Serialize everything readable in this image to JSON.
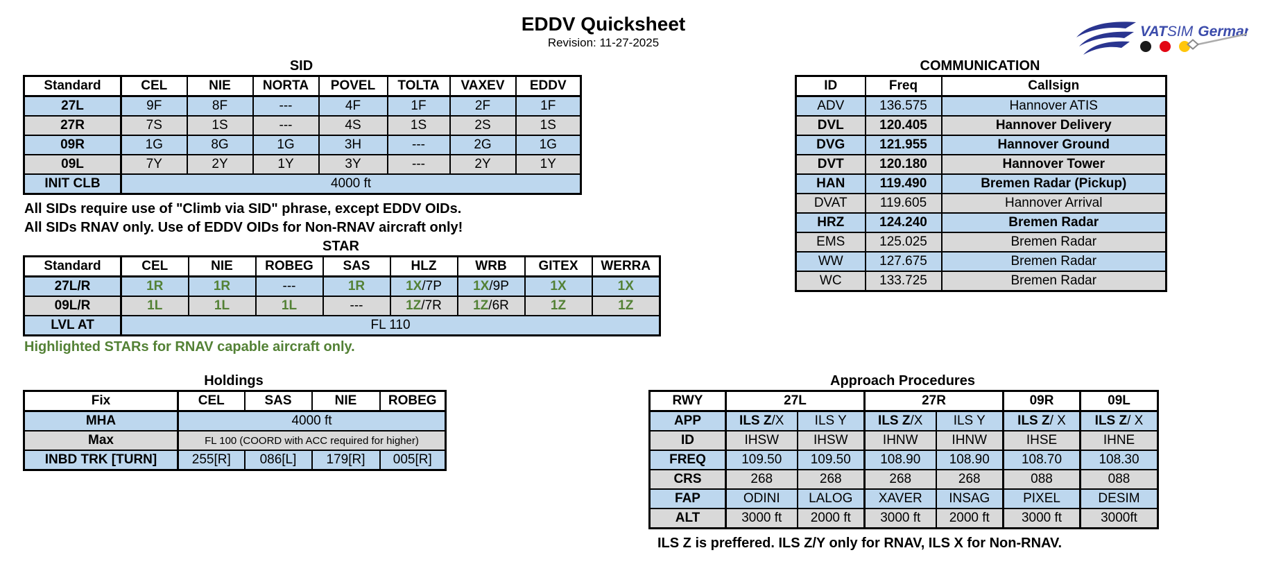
{
  "header": {
    "title": "EDDV Quicksheet",
    "revision": "Revision: 11-27-2025"
  },
  "logo": {
    "part1": "VAT",
    "part2": "SIM",
    "part3": "Germany",
    "colors": {
      "swoosh_blue": "#2A3590",
      "text_blue": "#3C4CAB",
      "dot_black": "#1A1A1A",
      "dot_red": "#E30613",
      "dot_yellow": "#FFC60B",
      "needle_gray": "#ABABAB"
    }
  },
  "colors": {
    "row_blue": "#BDD7EE",
    "row_gray": "#D9D9D9",
    "green_text": "#538135"
  },
  "sid": {
    "title": "SID",
    "notes": [
      "All SIDs require use of \"Climb via SID\" phrase, except EDDV OIDs.",
      "All SIDs RNAV only. Use of EDDV OIDs for Non-RNAV aircraft only!"
    ],
    "table": {
      "rows": [
        {
          "shade": "header",
          "cells": [
            {
              "t": "Standard",
              "b": 1
            },
            {
              "t": "CEL",
              "b": 1
            },
            {
              "t": "NIE",
              "b": 1
            },
            {
              "t": "NORTA",
              "b": 1
            },
            {
              "t": "POVEL",
              "b": 1
            },
            {
              "t": "TOLTA",
              "b": 1
            },
            {
              "t": "VAXEV",
              "b": 1
            },
            {
              "t": "EDDV",
              "b": 1
            }
          ]
        },
        {
          "shade": "blue",
          "cells": [
            {
              "t": "27L",
              "b": 1
            },
            {
              "t": "9F"
            },
            {
              "t": "8F"
            },
            {
              "t": "---"
            },
            {
              "t": "4F"
            },
            {
              "t": "1F"
            },
            {
              "t": "2F"
            },
            {
              "t": "1F"
            }
          ]
        },
        {
          "shade": "gray",
          "cells": [
            {
              "t": "27R",
              "b": 1
            },
            {
              "t": "7S"
            },
            {
              "t": "1S"
            },
            {
              "t": "---"
            },
            {
              "t": "4S"
            },
            {
              "t": "1S"
            },
            {
              "t": "2S"
            },
            {
              "t": "1S"
            }
          ]
        },
        {
          "shade": "blue",
          "cells": [
            {
              "t": "09R",
              "b": 1
            },
            {
              "t": "1G"
            },
            {
              "t": "8G"
            },
            {
              "t": "1G"
            },
            {
              "t": "3H"
            },
            {
              "t": "---"
            },
            {
              "t": "2G"
            },
            {
              "t": "1G"
            }
          ]
        },
        {
          "shade": "gray",
          "cells": [
            {
              "t": "09L",
              "b": 1
            },
            {
              "t": "7Y"
            },
            {
              "t": "2Y"
            },
            {
              "t": "1Y"
            },
            {
              "t": "3Y"
            },
            {
              "t": "---"
            },
            {
              "t": "2Y"
            },
            {
              "t": "1Y"
            }
          ]
        },
        {
          "shade": "blue",
          "cells": [
            {
              "t": "INIT CLB",
              "b": 1
            },
            {
              "t": "4000 ft",
              "span": 7
            }
          ]
        }
      ]
    }
  },
  "star": {
    "title": "STAR",
    "note": "Highlighted STARs for RNAV capable aircraft only.",
    "table": {
      "rows": [
        {
          "shade": "header",
          "cells": [
            {
              "t": "Standard",
              "b": 1
            },
            {
              "t": "CEL",
              "b": 1
            },
            {
              "t": "NIE",
              "b": 1
            },
            {
              "t": "ROBEG",
              "b": 1
            },
            {
              "t": "SAS",
              "b": 1
            },
            {
              "t": "HLZ",
              "b": 1
            },
            {
              "t": "WRB",
              "b": 1
            },
            {
              "t": "GITEX",
              "b": 1
            },
            {
              "t": "WERRA",
              "b": 1
            }
          ]
        },
        {
          "shade": "blue",
          "cells": [
            {
              "t": "27L/R",
              "b": 1
            },
            {
              "t": "1R",
              "g": 1
            },
            {
              "t": "1R",
              "g": 1
            },
            {
              "t": "---"
            },
            {
              "t": "1R",
              "g": 1
            },
            {
              "parts": [
                {
                  "t": "1X",
                  "g": 1
                },
                {
                  "t": "/7P"
                }
              ]
            },
            {
              "parts": [
                {
                  "t": "1X",
                  "g": 1
                },
                {
                  "t": "/9P"
                }
              ]
            },
            {
              "t": "1X",
              "g": 1
            },
            {
              "t": "1X",
              "g": 1
            }
          ]
        },
        {
          "shade": "gray",
          "cells": [
            {
              "t": "09L/R",
              "b": 1
            },
            {
              "t": "1L",
              "g": 1
            },
            {
              "t": "1L",
              "g": 1
            },
            {
              "t": "1L",
              "g": 1
            },
            {
              "t": "---"
            },
            {
              "parts": [
                {
                  "t": "1Z",
                  "g": 1
                },
                {
                  "t": "/7R"
                }
              ]
            },
            {
              "parts": [
                {
                  "t": "1Z",
                  "g": 1
                },
                {
                  "t": "/6R"
                }
              ]
            },
            {
              "t": "1Z",
              "g": 1
            },
            {
              "t": "1Z",
              "g": 1
            }
          ]
        },
        {
          "shade": "blue",
          "cells": [
            {
              "t": "LVL AT",
              "b": 1
            },
            {
              "t": "FL 110",
              "span": 8
            }
          ]
        }
      ]
    }
  },
  "holdings": {
    "title": "Holdings",
    "table": {
      "rows": [
        {
          "shade": "header",
          "cells": [
            {
              "t": "Fix",
              "b": 1
            },
            {
              "t": "CEL",
              "b": 1
            },
            {
              "t": "SAS",
              "b": 1
            },
            {
              "t": "NIE",
              "b": 1
            },
            {
              "t": "ROBEG",
              "b": 1
            }
          ]
        },
        {
          "shade": "blue",
          "cells": [
            {
              "t": "MHA",
              "b": 1
            },
            {
              "t": "4000 ft",
              "span": 4
            }
          ]
        },
        {
          "shade": "gray",
          "cells": [
            {
              "t": "Max",
              "b": 1
            },
            {
              "t": "FL 100 (COORD with ACC required for higher)",
              "span": 4,
              "small": 1
            }
          ]
        },
        {
          "shade": "blue",
          "cells": [
            {
              "t": "INBD TRK [TURN]",
              "b": 1
            },
            {
              "t": "255[R]"
            },
            {
              "t": "086[L]"
            },
            {
              "t": "179[R]"
            },
            {
              "t": "005[R]"
            }
          ]
        }
      ]
    }
  },
  "comm": {
    "title": "COMMUNICATION",
    "table": {
      "rows": [
        {
          "shade": "header",
          "cells": [
            {
              "t": "ID",
              "b": 1
            },
            {
              "t": "Freq",
              "b": 1
            },
            {
              "t": "Callsign",
              "b": 1
            }
          ]
        },
        {
          "shade": "blue",
          "cells": [
            {
              "t": "ADV"
            },
            {
              "t": "136.575"
            },
            {
              "t": "Hannover ATIS"
            }
          ]
        },
        {
          "shade": "gray",
          "cells": [
            {
              "t": "DVL",
              "b": 1
            },
            {
              "t": "120.405",
              "b": 1
            },
            {
              "t": "Hannover Delivery",
              "b": 1
            }
          ]
        },
        {
          "shade": "blue",
          "cells": [
            {
              "t": "DVG",
              "b": 1
            },
            {
              "t": "121.955",
              "b": 1
            },
            {
              "t": "Hannover Ground",
              "b": 1
            }
          ]
        },
        {
          "shade": "gray",
          "cells": [
            {
              "t": "DVT",
              "b": 1
            },
            {
              "t": "120.180",
              "b": 1
            },
            {
              "t": "Hannover Tower",
              "b": 1
            }
          ]
        },
        {
          "shade": "blue",
          "cells": [
            {
              "t": "HAN",
              "b": 1
            },
            {
              "t": "119.490",
              "b": 1
            },
            {
              "t": "Bremen Radar (Pickup)",
              "b": 1
            }
          ]
        },
        {
          "shade": "gray",
          "cells": [
            {
              "t": "DVAT"
            },
            {
              "t": "119.605"
            },
            {
              "t": "Hannover Arrival"
            }
          ]
        },
        {
          "shade": "blue",
          "cells": [
            {
              "t": "HRZ",
              "b": 1
            },
            {
              "t": "124.240",
              "b": 1
            },
            {
              "t": "Bremen Radar",
              "b": 1
            }
          ]
        },
        {
          "shade": "gray",
          "cells": [
            {
              "t": "EMS"
            },
            {
              "t": "125.025"
            },
            {
              "t": "Bremen Radar"
            }
          ]
        },
        {
          "shade": "blue",
          "cells": [
            {
              "t": "WW"
            },
            {
              "t": "127.675"
            },
            {
              "t": "Bremen Radar"
            }
          ]
        },
        {
          "shade": "gray",
          "cells": [
            {
              "t": "WC"
            },
            {
              "t": "133.725"
            },
            {
              "t": "Bremen Radar"
            }
          ]
        }
      ]
    }
  },
  "approach": {
    "title": "Approach Procedures",
    "note": "ILS Z is preffered. ILS Z/Y only for RNAV, ILS X for Non-RNAV.",
    "table": {
      "rows": [
        {
          "shade": "header",
          "cells": [
            {
              "t": "RWY",
              "b": 1,
              "tr": 1
            },
            {
              "t": "27L",
              "b": 1,
              "span": 2,
              "tr": 1
            },
            {
              "t": "27R",
              "b": 1,
              "span": 2,
              "tr": 1
            },
            {
              "t": "09R",
              "b": 1,
              "tr": 1
            },
            {
              "t": "09L",
              "b": 1
            }
          ]
        },
        {
          "shade": "blue",
          "cells": [
            {
              "t": "APP",
              "b": 1
            },
            {
              "parts": [
                {
                  "t": "ILS Z",
                  "b": 1
                },
                {
                  "t": "/X"
                }
              ]
            },
            {
              "t": "ILS Y",
              "tr": 1
            },
            {
              "parts": [
                {
                  "t": "ILS Z",
                  "b": 1
                },
                {
                  "t": "/X"
                }
              ]
            },
            {
              "t": "ILS Y",
              "tr": 1
            },
            {
              "parts": [
                {
                  "t": "ILS Z",
                  "b": 1
                },
                {
                  "t": "/ X"
                }
              ],
              "tr": 1
            },
            {
              "parts": [
                {
                  "t": "ILS Z",
                  "b": 1
                },
                {
                  "t": "/ X"
                }
              ]
            }
          ]
        },
        {
          "shade": "gray",
          "cells": [
            {
              "t": "ID",
              "b": 1
            },
            {
              "t": "IHSW"
            },
            {
              "t": "IHSW",
              "tr": 1
            },
            {
              "t": "IHNW"
            },
            {
              "t": "IHNW",
              "tr": 1
            },
            {
              "t": "IHSE",
              "tr": 1
            },
            {
              "t": "IHNE"
            }
          ]
        },
        {
          "shade": "blue",
          "cells": [
            {
              "t": "FREQ",
              "b": 1
            },
            {
              "t": "109.50"
            },
            {
              "t": "109.50",
              "tr": 1
            },
            {
              "t": "108.90"
            },
            {
              "t": "108.90",
              "tr": 1
            },
            {
              "t": "108.70",
              "tr": 1
            },
            {
              "t": "108.30"
            }
          ]
        },
        {
          "shade": "gray",
          "cells": [
            {
              "t": "CRS",
              "b": 1
            },
            {
              "t": "268"
            },
            {
              "t": "268",
              "tr": 1
            },
            {
              "t": "268"
            },
            {
              "t": "268",
              "tr": 1
            },
            {
              "t": "088",
              "tr": 1
            },
            {
              "t": "088"
            }
          ]
        },
        {
          "shade": "blue",
          "cells": [
            {
              "t": "FAP",
              "b": 1
            },
            {
              "t": "ODINI"
            },
            {
              "t": "LALOG",
              "tr": 1
            },
            {
              "t": "XAVER"
            },
            {
              "t": "INSAG",
              "tr": 1
            },
            {
              "t": "PIXEL",
              "tr": 1
            },
            {
              "t": "DESIM"
            }
          ]
        },
        {
          "shade": "gray",
          "cells": [
            {
              "t": "ALT",
              "b": 1
            },
            {
              "t": "3000 ft"
            },
            {
              "t": "2000 ft",
              "tr": 1
            },
            {
              "t": "3000 ft"
            },
            {
              "t": "2000 ft",
              "tr": 1
            },
            {
              "t": "3000 ft",
              "tr": 1
            },
            {
              "t": "3000ft"
            }
          ]
        }
      ]
    }
  }
}
